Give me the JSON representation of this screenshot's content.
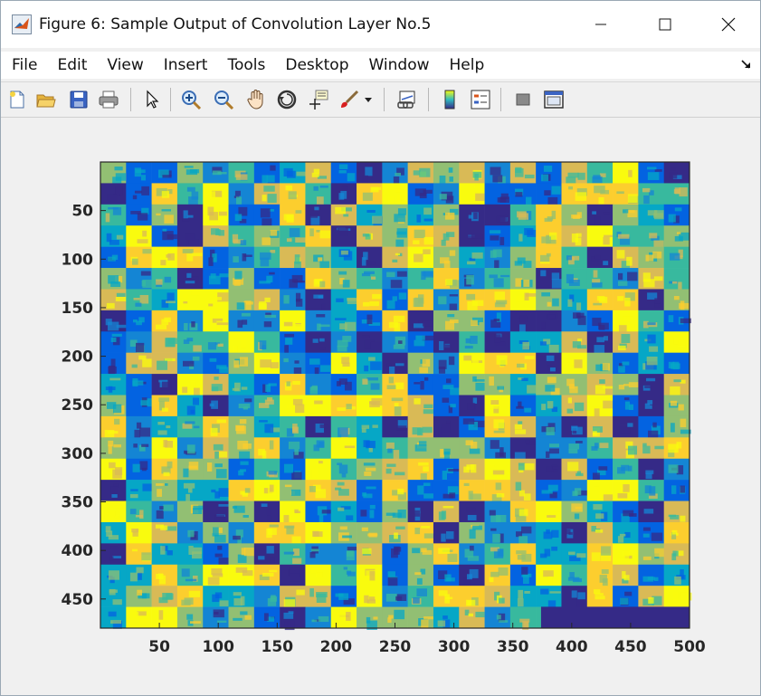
{
  "window": {
    "title": "Figure 6: Sample Output of Convolution Layer No.5",
    "controls": [
      "minimize",
      "maximize",
      "close"
    ]
  },
  "menu": {
    "items": [
      "File",
      "Edit",
      "View",
      "Insert",
      "Tools",
      "Desktop",
      "Window",
      "Help"
    ]
  },
  "toolbar": {
    "icons": [
      "new-figure-icon",
      "open-file-icon",
      "save-icon",
      "print-icon",
      "pointer-icon",
      "zoom-in-icon",
      "zoom-out-icon",
      "pan-hand-icon",
      "rotate-3d-icon",
      "data-cursor-icon",
      "brush-icon",
      "brush-dropdown-icon",
      "link-plot-icon",
      "colorbar-icon",
      "legend-icon",
      "hide-plot-tools-icon",
      "show-plot-tools-icon"
    ]
  },
  "colors": {
    "accent_yellow": "#f9fb0e",
    "accent_blue": "#0b6ce6",
    "dark_blue": "#352a87",
    "axes_frame": "#262626"
  },
  "chart_data": {
    "type": "heatmap",
    "title": "",
    "xlabel": "",
    "ylabel": "",
    "xlim": [
      0,
      500
    ],
    "ylim": [
      480,
      0
    ],
    "xticks": [
      50,
      100,
      150,
      200,
      250,
      300,
      350,
      400,
      450,
      500
    ],
    "yticks": [
      50,
      100,
      150,
      200,
      250,
      300,
      350,
      400,
      450
    ],
    "colormap": "parula",
    "description_tiles": {
      "cols": 23,
      "rows": 22,
      "tile_size": 22
    },
    "empty_region": {
      "x": [
        374,
        500
      ],
      "y": [
        458,
        480
      ],
      "color": "#352a87"
    }
  }
}
